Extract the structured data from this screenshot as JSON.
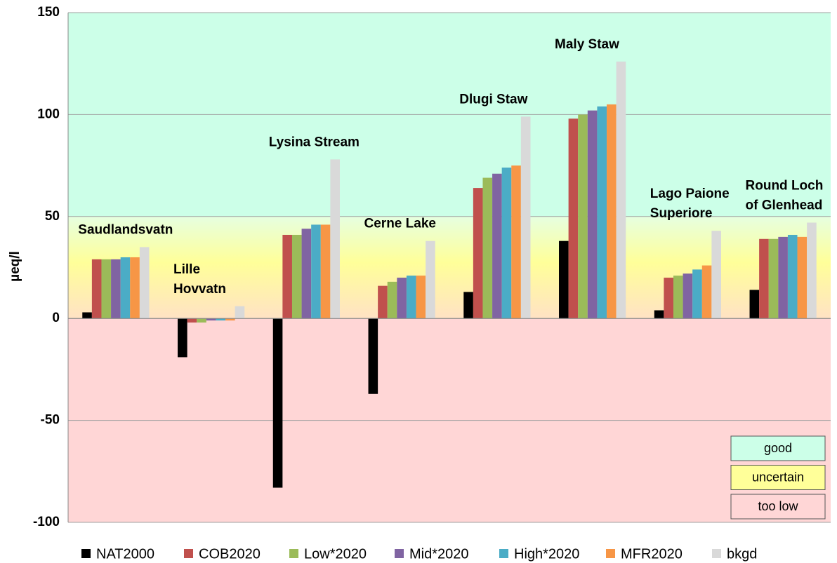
{
  "chart_data": {
    "type": "bar",
    "y_label": "µeq/l",
    "categories": [
      [
        "Saudlandsvatn"
      ],
      [
        "Lille",
        "Hovvatn"
      ],
      [
        "Lysina Stream"
      ],
      [
        "Cerne Lake"
      ],
      [
        "Dlugi Staw"
      ],
      [
        "Maly Staw"
      ],
      [
        "Lago Paione",
        "Superiore"
      ],
      [
        "Round Loch",
        "of Glenhead"
      ]
    ],
    "series": [
      {
        "name": "NAT2000",
        "color": "#000000",
        "values": [
          3,
          -19,
          -83,
          -37,
          13,
          38,
          4,
          14
        ]
      },
      {
        "name": "COB2020",
        "color": "#c0504d",
        "values": [
          29,
          -2,
          41,
          16,
          64,
          98,
          20,
          39
        ]
      },
      {
        "name": "Low*2020",
        "color": "#9bbb59",
        "values": [
          29,
          -2,
          41,
          18,
          69,
          100,
          21,
          39
        ]
      },
      {
        "name": "Mid*2020",
        "color": "#8064a2",
        "values": [
          29,
          -1,
          44,
          20,
          71,
          102,
          22,
          40
        ]
      },
      {
        "name": "High*2020",
        "color": "#4bacc6",
        "values": [
          30,
          -1,
          46,
          21,
          74,
          104,
          24,
          41
        ]
      },
      {
        "name": "MFR2020",
        "color": "#f79646",
        "values": [
          30,
          -1,
          46,
          21,
          75,
          105,
          26,
          40
        ]
      },
      {
        "name": "bkgd",
        "color": "#d9d9d9",
        "values": [
          35,
          6,
          78,
          38,
          99,
          126,
          43,
          47
        ]
      }
    ],
    "ylim": [
      -100,
      150
    ],
    "yticks": [
      -100,
      -50,
      0,
      50,
      100,
      150
    ],
    "grid": true,
    "zones": [
      {
        "label": "good",
        "range": [
          50,
          150
        ],
        "color": "#ccffe8"
      },
      {
        "label": "uncertain",
        "range": [
          0,
          50
        ],
        "color": "#ffff99"
      },
      {
        "label": "too low",
        "range": [
          -100,
          0
        ],
        "color": "#ffd6d6"
      }
    ]
  }
}
